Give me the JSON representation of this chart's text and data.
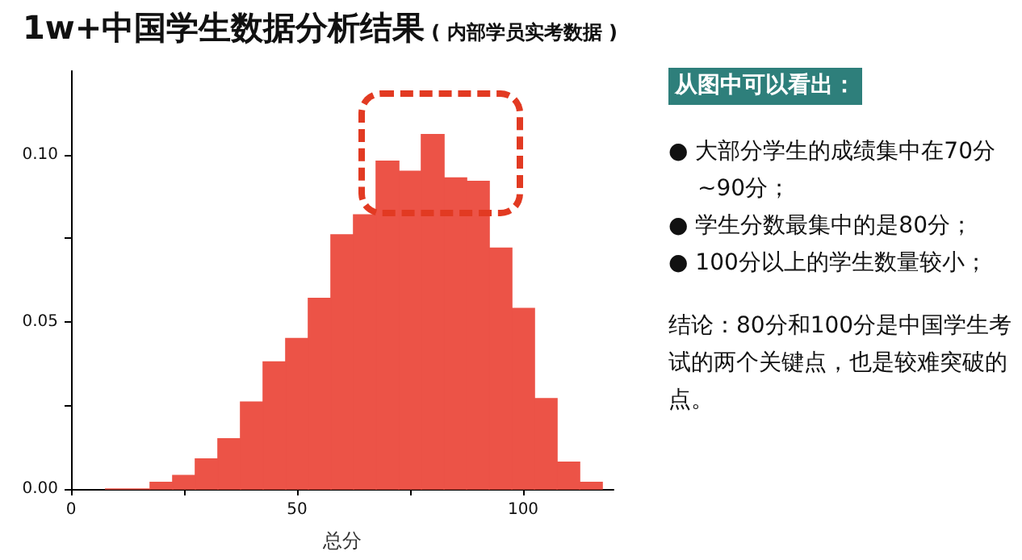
{
  "chart_data": {
    "type": "histogram",
    "title": "1w+中国学生数据分析结果",
    "subtitle": "( 内部学员实考数据 )",
    "xlabel": "总分",
    "bins": [
      7.5,
      12.5,
      17.5,
      22.5,
      27.5,
      32.5,
      37.5,
      42.5,
      47.5,
      52.5,
      57.5,
      62.5,
      67.5,
      72.5,
      77.5,
      82.5,
      87.5,
      92.5,
      97.5,
      102.5,
      107.5,
      112.5,
      117.5
    ],
    "values": [
      0,
      0,
      0.002,
      0.004,
      0.009,
      0.015,
      0.026,
      0.038,
      0.045,
      0.057,
      0.076,
      0.082,
      0.098,
      0.095,
      0.106,
      0.093,
      0.092,
      0.072,
      0.054,
      0.027,
      0.008,
      0.002
    ],
    "color": "#ec5347",
    "xlim": [
      0,
      120
    ],
    "xticks": [
      0,
      {
        "value": 25,
        "label": null
      },
      50,
      {
        "value": 75,
        "label": null
      },
      100
    ],
    "ylim": [
      0,
      0.125
    ],
    "yticks": [
      {
        "value": 0,
        "label": "0.00"
      },
      {
        "value": 0.025,
        "label": null
      },
      {
        "value": 0.05,
        "label": "0.05"
      },
      {
        "value": 0.075,
        "label": null
      },
      {
        "value": 0.1,
        "label": "0.10"
      }
    ],
    "grid": false,
    "annotations": [
      "从图中可以看出：",
      "● 大部分学生的成绩集中在70分~90分；",
      "● 学生分数最集中的是80分；",
      "● 100分以上的学生数量较小；",
      "结论：80分和100分是中国学生考试的两个关键点，也是较难突破的点。"
    ]
  }
}
